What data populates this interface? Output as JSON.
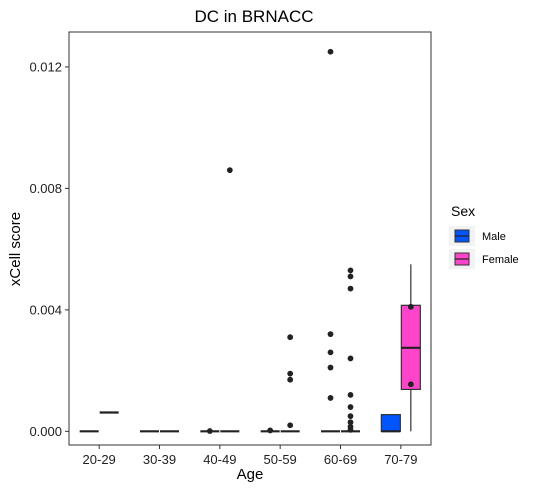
{
  "chart_data": {
    "type": "boxplot",
    "title": "DC in BRNACC",
    "xlabel": "Age",
    "ylabel": "xCell score",
    "categories": [
      "20-29",
      "30-39",
      "40-49",
      "50-59",
      "60-69",
      "70-79"
    ],
    "ylim": [
      -0.00045,
      0.01315
    ],
    "yticks": [
      0.0,
      0.004,
      0.008,
      0.012
    ],
    "ytick_labels": [
      "0.000",
      "0.004",
      "0.008",
      "0.012"
    ],
    "grid": false,
    "legend": {
      "title": "Sex",
      "placement": "right"
    },
    "series": [
      {
        "name": "Male",
        "color": "#0055FF",
        "boxes": [
          {
            "category": "20-29",
            "whisker_low": 0,
            "q1": 0,
            "median": 0,
            "q3": 0,
            "whisker_high": 0,
            "outliers": []
          },
          {
            "category": "30-39",
            "whisker_low": 0,
            "q1": 0,
            "median": 0,
            "q3": 0,
            "whisker_high": 0,
            "outliers": []
          },
          {
            "category": "40-49",
            "whisker_low": 0,
            "q1": 0,
            "median": 0,
            "q3": 0,
            "whisker_high": 0,
            "outliers": [
              1e-05
            ]
          },
          {
            "category": "50-59",
            "whisker_low": 0,
            "q1": 0,
            "median": 0,
            "q3": 0,
            "whisker_high": 0,
            "outliers": [
              3e-05
            ]
          },
          {
            "category": "60-69",
            "whisker_low": 0,
            "q1": 0,
            "median": 0,
            "q3": 0,
            "whisker_high": 0,
            "outliers": [
              0.0125,
              0.0032,
              0.0026,
              0.0021,
              0.0011
            ]
          },
          {
            "category": "70-79",
            "whisker_low": 0,
            "q1": 0,
            "median": 0,
            "q3": 0.00055,
            "whisker_high": 0.00055,
            "outliers": []
          }
        ]
      },
      {
        "name": "Female",
        "color": "#FF44CC",
        "boxes": [
          {
            "category": "20-29",
            "whisker_low": 0.00062,
            "q1": 0.00062,
            "median": 0.00062,
            "q3": 0.00062,
            "whisker_high": 0.00062,
            "outliers": []
          },
          {
            "category": "30-39",
            "whisker_low": 0,
            "q1": 0,
            "median": 0,
            "q3": 0,
            "whisker_high": 0,
            "outliers": []
          },
          {
            "category": "40-49",
            "whisker_low": 0,
            "q1": 0,
            "median": 0,
            "q3": 0,
            "whisker_high": 0,
            "outliers": [
              0.0086
            ]
          },
          {
            "category": "50-59",
            "whisker_low": 0,
            "q1": 0,
            "median": 0,
            "q3": 0,
            "whisker_high": 0,
            "outliers": [
              0.0031,
              0.0019,
              0.0017,
              0.0002
            ]
          },
          {
            "category": "60-69",
            "whisker_low": 0,
            "q1": 0,
            "median": 0,
            "q3": 0,
            "whisker_high": 0,
            "outliers": [
              0.0053,
              0.0051,
              0.0047,
              0.0024,
              0.0012,
              0.0008,
              0.0005,
              0.0003,
              0.00015,
              5e-05
            ]
          },
          {
            "category": "70-79",
            "whisker_low": 0,
            "q1": 0.00138,
            "median": 0.00275,
            "q3": 0.00415,
            "whisker_high": 0.0055,
            "outliers": [
              0.0041,
              0.00155
            ]
          }
        ]
      }
    ]
  }
}
